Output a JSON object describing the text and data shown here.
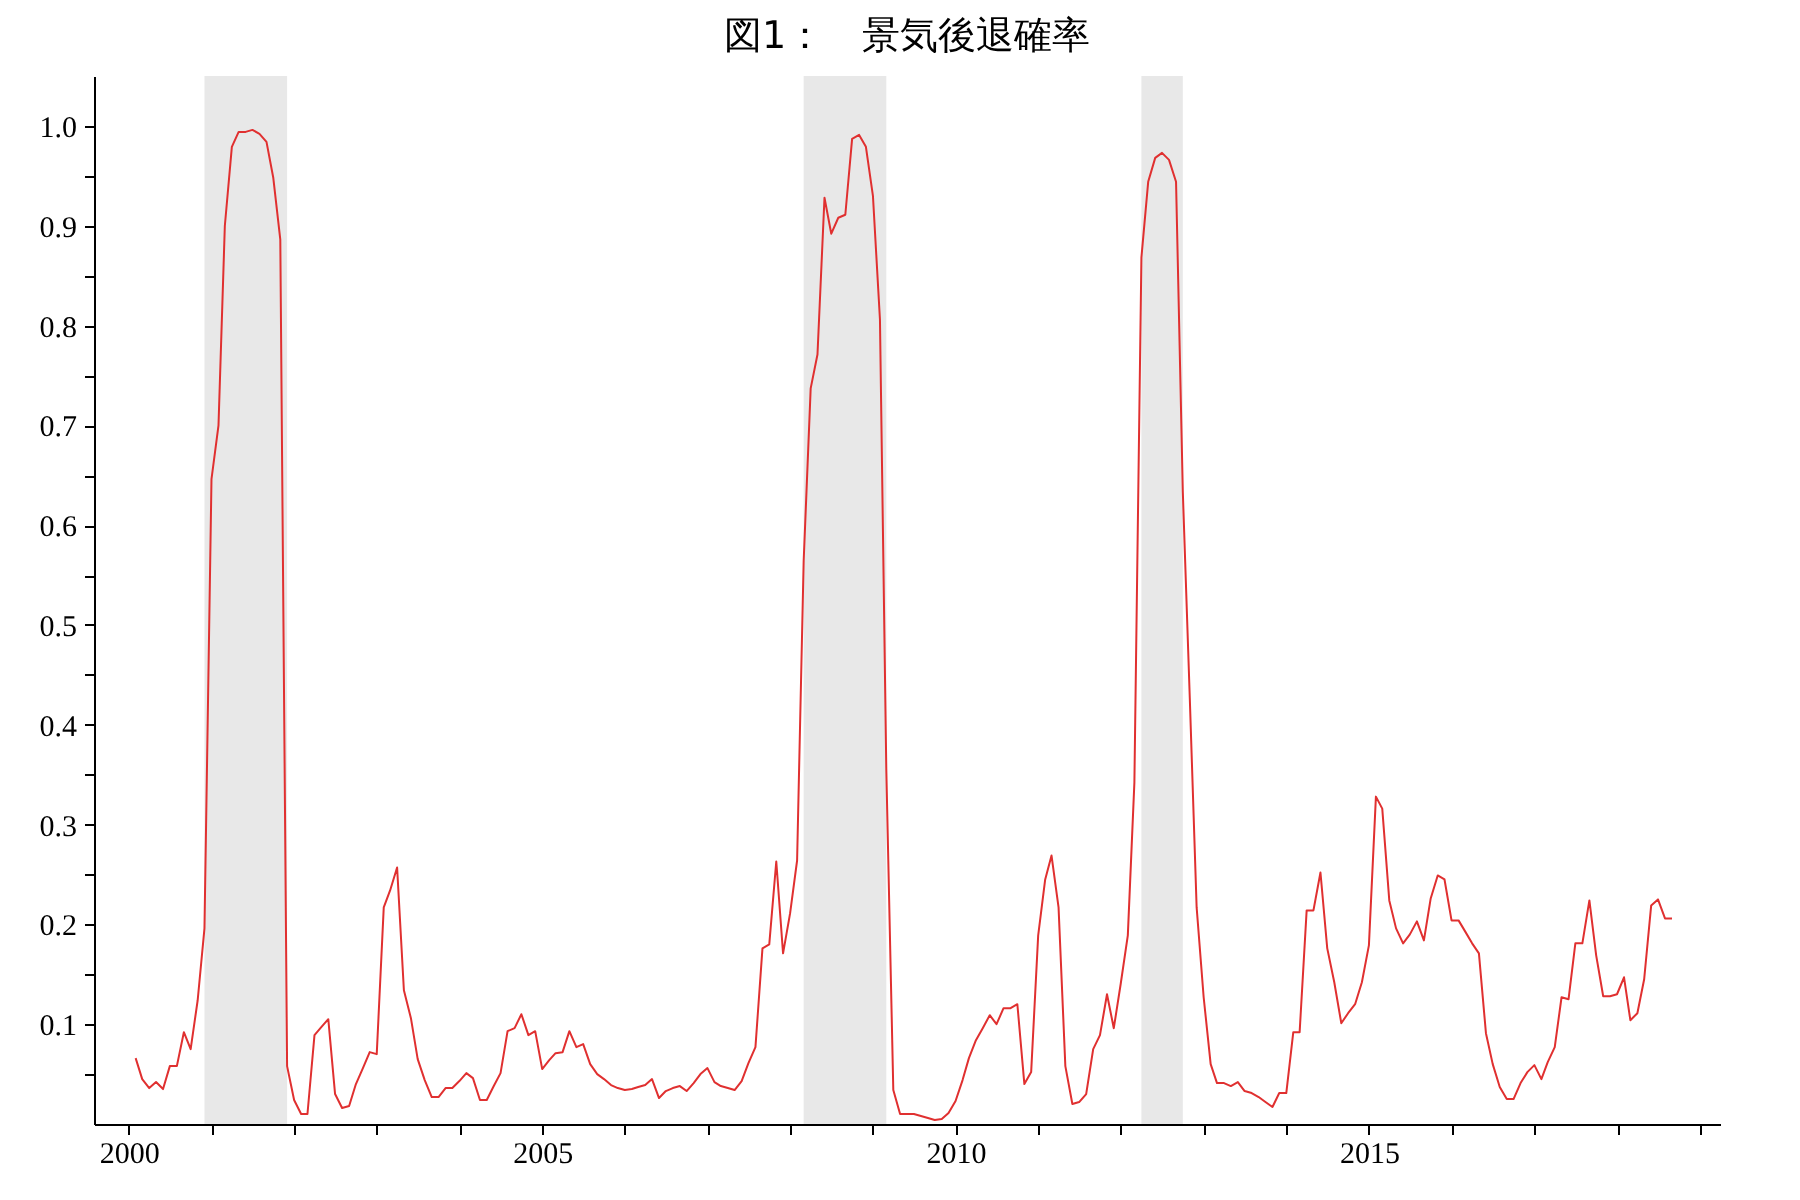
{
  "chart_data": {
    "type": "line",
    "title": "図1：　景気後退確率",
    "x": [
      "2000-02",
      "2000-03",
      "2000-04",
      "2000-05",
      "2000-06",
      "2000-07",
      "2000-08",
      "2000-09",
      "2000-10",
      "2000-11",
      "2000-12",
      "2001-01",
      "2001-02",
      "2001-03",
      "2001-04",
      "2001-05",
      "2001-06",
      "2001-07",
      "2001-08",
      "2001-09",
      "2001-10",
      "2001-11",
      "2001-12",
      "2002-01",
      "2002-02",
      "2002-03",
      "2002-04",
      "2002-05",
      "2002-06",
      "2002-07",
      "2002-08",
      "2002-09",
      "2002-10",
      "2002-11",
      "2002-12",
      "2003-01",
      "2003-02",
      "2003-03",
      "2003-04",
      "2003-05",
      "2003-06",
      "2003-07",
      "2003-08",
      "2003-09",
      "2003-10",
      "2003-11",
      "2003-12",
      "2004-01",
      "2004-02",
      "2004-03",
      "2004-04",
      "2004-05",
      "2004-06",
      "2004-07",
      "2004-08",
      "2004-09",
      "2004-10",
      "2004-11",
      "2004-12",
      "2005-01",
      "2005-02",
      "2005-03",
      "2005-04",
      "2005-05",
      "2005-06",
      "2005-07",
      "2005-08",
      "2005-09",
      "2005-10",
      "2005-11",
      "2005-12",
      "2006-01",
      "2006-02",
      "2006-03",
      "2006-04",
      "2006-05",
      "2006-06",
      "2006-07",
      "2006-08",
      "2006-09",
      "2006-10",
      "2006-11",
      "2006-12",
      "2007-01",
      "2007-02",
      "2007-03",
      "2007-04",
      "2007-05",
      "2007-06",
      "2007-07",
      "2007-08",
      "2007-09",
      "2007-10",
      "2007-11",
      "2007-12",
      "2008-01",
      "2008-02",
      "2008-03",
      "2008-04",
      "2008-05",
      "2008-06",
      "2008-07",
      "2008-08",
      "2008-09",
      "2008-10",
      "2008-11",
      "2008-12",
      "2009-01",
      "2009-02",
      "2009-03",
      "2009-04",
      "2009-05",
      "2009-06",
      "2009-07",
      "2009-08",
      "2009-09",
      "2009-10",
      "2009-11",
      "2009-12",
      "2010-01",
      "2010-02",
      "2010-03",
      "2010-04",
      "2010-05",
      "2010-06",
      "2010-07",
      "2010-08",
      "2010-09",
      "2010-10",
      "2010-11",
      "2010-12",
      "2011-01",
      "2011-02",
      "2011-03",
      "2011-04",
      "2011-05",
      "2011-06",
      "2011-07",
      "2011-08",
      "2011-09",
      "2011-10",
      "2011-11",
      "2011-12",
      "2012-01",
      "2012-02",
      "2012-03",
      "2012-04",
      "2012-05",
      "2012-06",
      "2012-07",
      "2012-08",
      "2012-09",
      "2012-10",
      "2012-11",
      "2012-12",
      "2013-01",
      "2013-02",
      "2013-03",
      "2013-04",
      "2013-05",
      "2013-06",
      "2013-07",
      "2013-08",
      "2013-09",
      "2013-10",
      "2013-11",
      "2013-12",
      "2014-01",
      "2014-02",
      "2014-03",
      "2014-04",
      "2014-05",
      "2014-06",
      "2014-07",
      "2014-08",
      "2014-09",
      "2014-10",
      "2014-11",
      "2014-12",
      "2015-01",
      "2015-02",
      "2015-03",
      "2015-04",
      "2015-05",
      "2015-06",
      "2015-07",
      "2015-08",
      "2015-09",
      "2015-10",
      "2015-11",
      "2015-12",
      "2016-01",
      "2016-02",
      "2016-03",
      "2016-04",
      "2016-05",
      "2016-06",
      "2016-07",
      "2016-08",
      "2016-09",
      "2016-10",
      "2016-11",
      "2016-12",
      "2017-01",
      "2017-02",
      "2017-03",
      "2017-04",
      "2017-05",
      "2017-06",
      "2017-07",
      "2017-08",
      "2017-09",
      "2017-10",
      "2017-11",
      "2017-12",
      "2018-01",
      "2018-02",
      "2018-03",
      "2018-04",
      "2018-05",
      "2018-06",
      "2018-07",
      "2018-08",
      "2018-09"
    ],
    "series": [
      {
        "color": "#e03030",
        "values": [
          0.066,
          0.045,
          0.036,
          0.042,
          0.035,
          0.058,
          0.058,
          0.092,
          0.075,
          0.124,
          0.196,
          0.646,
          0.7,
          0.9,
          0.979,
          0.994,
          0.994,
          0.996,
          0.992,
          0.984,
          0.948,
          0.886,
          0.058,
          0.024,
          0.01,
          0.01,
          0.089,
          0.097,
          0.105,
          0.03,
          0.016,
          0.018,
          0.04,
          0.056,
          0.072,
          0.07,
          0.217,
          0.234,
          0.257,
          0.134,
          0.106,
          0.065,
          0.044,
          0.027,
          0.027,
          0.036,
          0.036,
          0.043,
          0.051,
          0.046,
          0.024,
          0.024,
          0.038,
          0.051,
          0.093,
          0.096,
          0.11,
          0.089,
          0.093,
          0.055,
          0.064,
          0.071,
          0.072,
          0.093,
          0.077,
          0.08,
          0.06,
          0.05,
          0.045,
          0.039,
          0.036,
          0.034,
          0.035,
          0.037,
          0.039,
          0.045,
          0.026,
          0.033,
          0.036,
          0.038,
          0.033,
          0.041,
          0.05,
          0.056,
          0.042,
          0.038,
          0.036,
          0.034,
          0.043,
          0.061,
          0.077,
          0.176,
          0.18,
          0.263,
          0.171,
          0.211,
          0.264,
          0.564,
          0.737,
          0.771,
          0.928,
          0.892,
          0.908,
          0.911,
          0.987,
          0.991,
          0.979,
          0.93,
          0.806,
          0.356,
          0.034,
          0.01,
          0.01,
          0.01,
          0.008,
          0.006,
          0.004,
          0.005,
          0.011,
          0.023,
          0.044,
          0.066,
          0.084,
          0.096,
          0.109,
          0.1,
          0.116,
          0.116,
          0.12,
          0.04,
          0.052,
          0.189,
          0.245,
          0.269,
          0.217,
          0.058,
          0.02,
          0.022,
          0.03,
          0.075,
          0.089,
          0.13,
          0.096,
          0.141,
          0.189,
          0.342,
          0.868,
          0.944,
          0.968,
          0.973,
          0.966,
          0.944,
          0.633,
          0.425,
          0.217,
          0.127,
          0.06,
          0.041,
          0.041,
          0.038,
          0.042,
          0.033,
          0.031,
          0.027,
          0.022,
          0.017,
          0.031,
          0.031,
          0.092,
          0.092,
          0.214,
          0.214,
          0.252,
          0.176,
          0.142,
          0.101,
          0.111,
          0.12,
          0.142,
          0.179,
          0.328,
          0.316,
          0.224,
          0.196,
          0.181,
          0.19,
          0.203,
          0.184,
          0.226,
          0.249,
          0.245,
          0.204,
          0.204,
          0.193,
          0.181,
          0.171,
          0.091,
          0.06,
          0.037,
          0.025,
          0.025,
          0.041,
          0.052,
          0.059,
          0.045,
          0.062,
          0.077,
          0.127,
          0.125,
          0.181,
          0.181,
          0.224,
          0.169,
          0.128,
          0.128,
          0.13,
          0.147,
          0.104,
          0.111,
          0.145,
          0.219,
          0.225,
          0.206,
          0.206
        ]
      }
    ],
    "bands": [
      {
        "axis": "x",
        "from": "2000-12",
        "to": "2001-12",
        "color": "#d9d9d9"
      },
      {
        "axis": "x",
        "from": "2008-03",
        "to": "2009-03",
        "color": "#d9d9d9"
      },
      {
        "axis": "x",
        "from": "2012-04",
        "to": "2012-10",
        "color": "#d9d9d9"
      }
    ],
    "xlim": [
      "1999-08",
      "2019-04"
    ],
    "xticks": [
      "2000",
      {
        "value": "2001",
        "label": null
      },
      {
        "value": "2002",
        "label": null
      },
      {
        "value": "2003",
        "label": null
      },
      {
        "value": "2004",
        "label": null
      },
      "2005",
      {
        "value": "2006",
        "label": null
      },
      {
        "value": "2007",
        "label": null
      },
      {
        "value": "2008",
        "label": null
      },
      {
        "value": "2009",
        "label": null
      },
      "2010",
      {
        "value": "2011",
        "label": null
      },
      {
        "value": "2012",
        "label": null
      },
      {
        "value": "2013",
        "label": null
      },
      {
        "value": "2014",
        "label": null
      },
      "2015",
      {
        "value": "2016",
        "label": null
      },
      {
        "value": "2017",
        "label": null
      },
      {
        "value": "2018",
        "label": null
      },
      {
        "value": "2019",
        "label": null
      }
    ],
    "ylim": [
      0,
      1.05
    ],
    "yticks": [
      {
        "value": 0.05,
        "label": null
      },
      {
        "value": 0.1,
        "label": "0.1"
      },
      {
        "value": 0.15,
        "label": null
      },
      {
        "value": 0.2,
        "label": "0.2"
      },
      {
        "value": 0.25,
        "label": null
      },
      {
        "value": 0.3,
        "label": "0.3"
      },
      {
        "value": 0.35,
        "label": null
      },
      {
        "value": 0.4,
        "label": "0.4"
      },
      {
        "value": 0.45,
        "label": null
      },
      {
        "value": 0.5,
        "label": "0.5"
      },
      {
        "value": 0.55,
        "label": null
      },
      {
        "value": 0.6,
        "label": "0.6"
      },
      {
        "value": 0.65,
        "label": null
      },
      {
        "value": 0.7,
        "label": "0.7"
      },
      {
        "value": 0.75,
        "label": null
      },
      {
        "value": 0.8,
        "label": "0.8"
      },
      {
        "value": 0.85,
        "label": null
      },
      {
        "value": 0.9,
        "label": "0.9"
      },
      {
        "value": 0.95,
        "label": null
      },
      {
        "value": 1.0,
        "label": "1.0"
      }
    ],
    "grid": false,
    "line_style": "solid"
  }
}
